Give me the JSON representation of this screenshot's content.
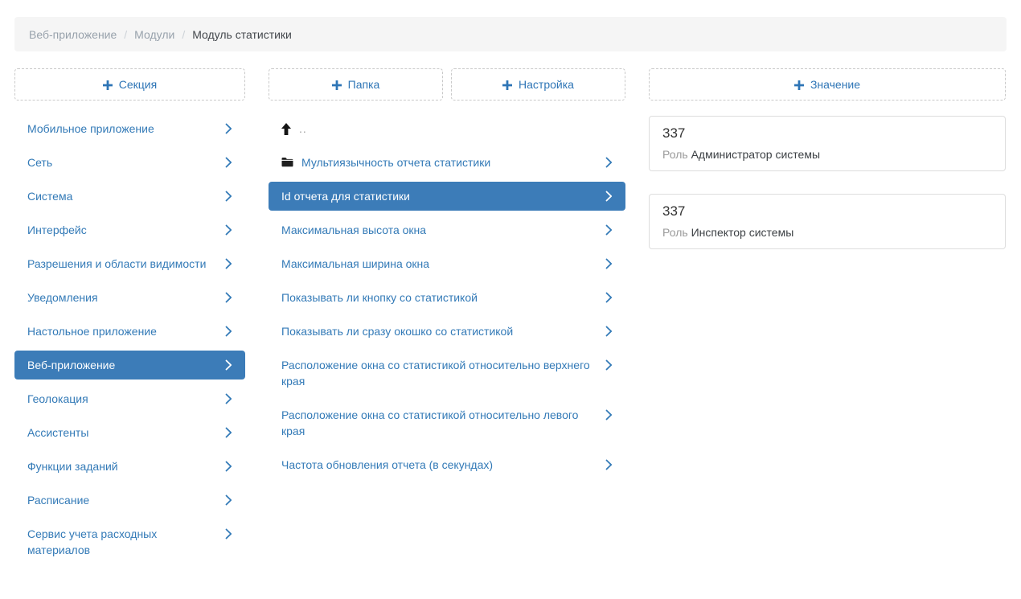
{
  "breadcrumb": {
    "links": [
      "Веб-приложение",
      "Модули"
    ],
    "current": "Модуль статистики",
    "separator": "/"
  },
  "actions": {
    "add_section": "Секция",
    "add_folder": "Папка",
    "add_setting": "Настройка",
    "add_value": "Значение"
  },
  "sections": {
    "items": [
      {
        "label": "Мобильное приложение",
        "selected": false
      },
      {
        "label": "Сеть",
        "selected": false
      },
      {
        "label": "Система",
        "selected": false
      },
      {
        "label": "Интерфейс",
        "selected": false
      },
      {
        "label": "Разрешения и области видимости",
        "selected": false
      },
      {
        "label": "Уведомления",
        "selected": false
      },
      {
        "label": "Настольное приложение",
        "selected": false
      },
      {
        "label": "Веб-приложение",
        "selected": true
      },
      {
        "label": "Геолокация",
        "selected": false
      },
      {
        "label": "Ассистенты",
        "selected": false
      },
      {
        "label": "Функции заданий",
        "selected": false
      },
      {
        "label": "Расписание",
        "selected": false
      },
      {
        "label": "Сервис учета расходных материалов",
        "selected": false
      }
    ]
  },
  "settings": {
    "items": [
      {
        "type": "up",
        "label": "..",
        "selected": false
      },
      {
        "type": "folder",
        "label": "Мультиязычность отчета статистики",
        "selected": false
      },
      {
        "type": "setting",
        "label": "Id отчета для статистики",
        "selected": true
      },
      {
        "type": "setting",
        "label": "Максимальная высота окна",
        "selected": false
      },
      {
        "type": "setting",
        "label": "Максимальная ширина окна",
        "selected": false
      },
      {
        "type": "setting",
        "label": "Показывать ли кнопку со статистикой",
        "selected": false
      },
      {
        "type": "setting",
        "label": "Показывать ли сразу окошко со статистикой",
        "selected": false
      },
      {
        "type": "setting",
        "label": "Расположение окна со статистикой относительно верхнего края",
        "selected": false
      },
      {
        "type": "setting",
        "label": "Расположение окна со статистикой относительно левого края",
        "selected": false
      },
      {
        "type": "setting",
        "label": "Частота обновления отчета (в секундах)",
        "selected": false
      }
    ]
  },
  "values": {
    "role_label": "Роль",
    "cards": [
      {
        "value": "337",
        "role": "Администратор системы"
      },
      {
        "value": "337",
        "role": "Инспектор системы"
      }
    ]
  },
  "colors": {
    "accent": "#337ab7",
    "selected_bg": "#3c7cb8",
    "breadcrumb_bg": "#f5f5f5",
    "card_border": "#dddddd",
    "muted_text": "#9a9a9a"
  }
}
